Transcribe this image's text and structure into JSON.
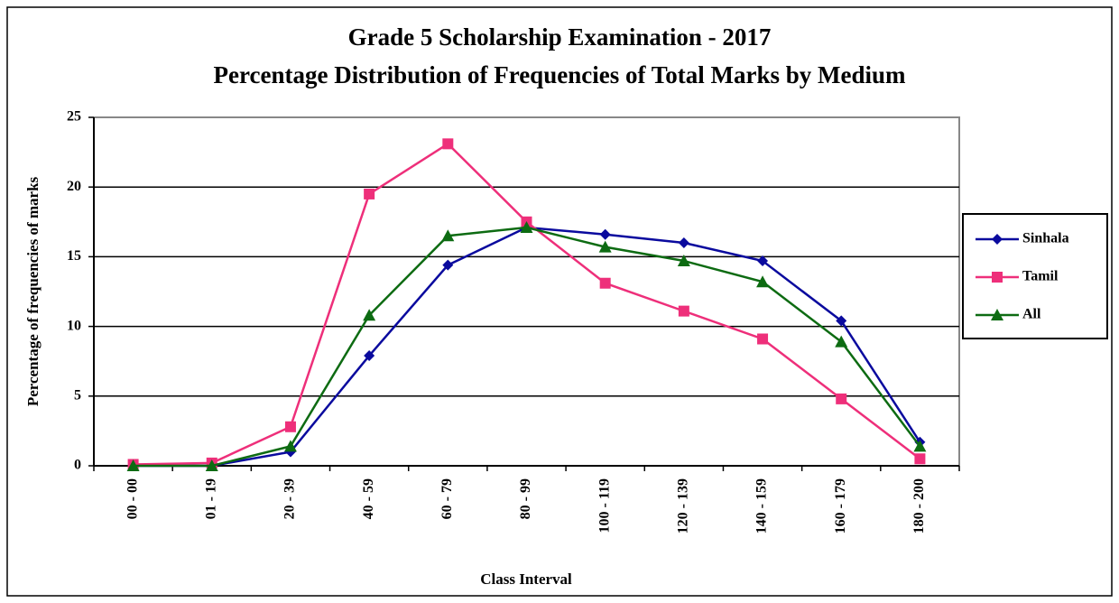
{
  "chart_data": {
    "type": "line",
    "title": "Grade 5 Scholarship Examination - 2017",
    "subtitle": "Percentage Distribution of Frequencies of Total Marks by Medium",
    "y_label": "Percentage of frequencies of marks",
    "x_label": "Class Interval",
    "categories": [
      "00 - 00",
      "01 - 19",
      "20 - 39",
      "40 - 59",
      "60 - 79",
      "80 - 99",
      "100 - 119",
      "120 - 139",
      "140 - 159",
      "160 - 179",
      "180 - 200"
    ],
    "series": [
      {
        "name": "Sinhala",
        "color": "#0a0a9e",
        "marker": "diamond",
        "values": [
          0,
          0,
          1.0,
          7.9,
          14.4,
          17.1,
          16.6,
          16.0,
          14.7,
          10.4,
          1.7
        ]
      },
      {
        "name": "Tamil",
        "color": "#ee2f7a",
        "marker": "square",
        "values": [
          0.1,
          0.2,
          2.8,
          19.5,
          23.1,
          17.5,
          13.1,
          11.1,
          9.1,
          4.8,
          0.5
        ]
      },
      {
        "name": "All",
        "color": "#0d6b12",
        "marker": "triangle",
        "values": [
          0,
          0,
          1.4,
          10.8,
          16.5,
          17.1,
          15.7,
          14.7,
          13.2,
          8.9,
          1.4
        ]
      }
    ],
    "ylim": [
      0,
      25
    ],
    "yticks": [
      0,
      5,
      10,
      15,
      20,
      25
    ],
    "grid": true,
    "legend": "right"
  }
}
